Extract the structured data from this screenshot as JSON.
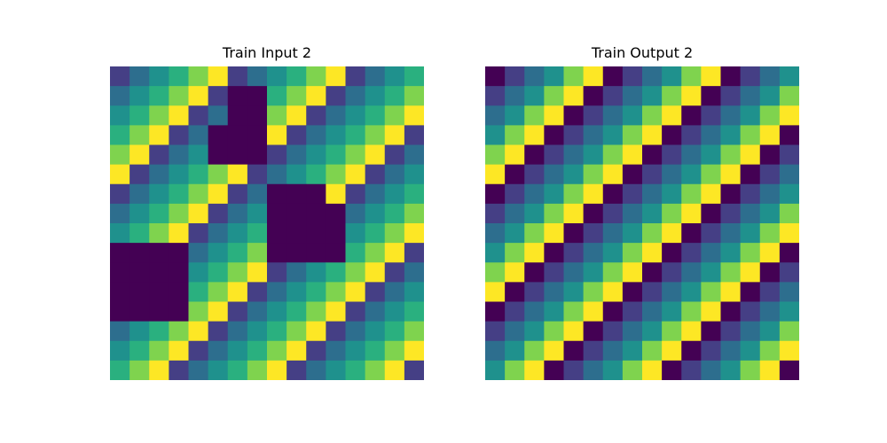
{
  "palette": {
    "0": "#440154",
    "1": "#453f85",
    "2": "#2d6e8e",
    "3": "#1f918d",
    "4": "#2ab07f",
    "5": "#7fd34e",
    "6": "#fde725"
  },
  "panels": [
    {
      "title": "Train Input 2",
      "grid": [
        [
          1,
          2,
          3,
          4,
          5,
          6,
          1,
          2,
          3,
          4,
          5,
          6,
          1,
          2,
          3,
          4
        ],
        [
          2,
          3,
          4,
          5,
          6,
          1,
          0,
          0,
          4,
          5,
          6,
          1,
          2,
          3,
          4,
          5
        ],
        [
          3,
          4,
          5,
          6,
          1,
          2,
          0,
          0,
          5,
          6,
          1,
          2,
          3,
          4,
          5,
          6
        ],
        [
          4,
          5,
          6,
          1,
          2,
          0,
          0,
          0,
          6,
          1,
          2,
          3,
          4,
          5,
          6,
          1
        ],
        [
          5,
          6,
          1,
          2,
          3,
          0,
          0,
          0,
          1,
          2,
          3,
          4,
          5,
          6,
          1,
          2
        ],
        [
          6,
          1,
          2,
          3,
          4,
          5,
          6,
          1,
          2,
          3,
          4,
          5,
          6,
          1,
          2,
          3
        ],
        [
          1,
          2,
          3,
          4,
          5,
          6,
          1,
          2,
          0,
          0,
          0,
          6,
          1,
          2,
          3,
          4
        ],
        [
          2,
          3,
          4,
          5,
          6,
          1,
          2,
          3,
          0,
          0,
          0,
          0,
          2,
          3,
          4,
          5
        ],
        [
          3,
          4,
          5,
          6,
          1,
          2,
          3,
          4,
          0,
          0,
          0,
          0,
          3,
          4,
          5,
          6
        ],
        [
          0,
          0,
          0,
          0,
          2,
          3,
          4,
          5,
          0,
          0,
          0,
          0,
          4,
          5,
          6,
          1
        ],
        [
          0,
          0,
          0,
          0,
          3,
          4,
          5,
          6,
          1,
          2,
          3,
          4,
          5,
          6,
          1,
          2
        ],
        [
          0,
          0,
          0,
          0,
          4,
          5,
          6,
          1,
          2,
          3,
          4,
          5,
          6,
          1,
          2,
          3
        ],
        [
          0,
          0,
          0,
          0,
          5,
          6,
          1,
          2,
          3,
          4,
          5,
          6,
          1,
          2,
          3,
          4
        ],
        [
          2,
          3,
          4,
          5,
          6,
          1,
          2,
          3,
          4,
          5,
          6,
          1,
          2,
          3,
          4,
          5
        ],
        [
          3,
          4,
          5,
          6,
          1,
          2,
          3,
          4,
          5,
          6,
          1,
          2,
          3,
          4,
          5,
          6
        ],
        [
          4,
          5,
          6,
          1,
          2,
          3,
          4,
          5,
          6,
          1,
          2,
          3,
          4,
          5,
          6,
          1
        ]
      ]
    },
    {
      "title": "Train Output 2",
      "grid": [
        [
          0,
          1,
          2,
          3,
          5,
          6,
          0,
          1,
          2,
          3,
          5,
          6,
          0,
          1,
          2,
          3
        ],
        [
          1,
          2,
          3,
          5,
          6,
          0,
          1,
          2,
          3,
          5,
          6,
          0,
          1,
          2,
          3,
          5
        ],
        [
          2,
          3,
          5,
          6,
          0,
          1,
          2,
          3,
          5,
          6,
          0,
          1,
          2,
          3,
          5,
          6
        ],
        [
          3,
          5,
          6,
          0,
          1,
          2,
          3,
          5,
          6,
          0,
          1,
          2,
          3,
          5,
          6,
          0
        ],
        [
          5,
          6,
          0,
          1,
          2,
          3,
          5,
          6,
          0,
          1,
          2,
          3,
          5,
          6,
          0,
          1
        ],
        [
          6,
          0,
          1,
          2,
          3,
          5,
          6,
          0,
          1,
          2,
          3,
          5,
          6,
          0,
          1,
          2
        ],
        [
          0,
          1,
          2,
          3,
          5,
          6,
          0,
          1,
          2,
          3,
          5,
          6,
          0,
          1,
          2,
          3
        ],
        [
          1,
          2,
          3,
          5,
          6,
          0,
          1,
          2,
          3,
          5,
          6,
          0,
          1,
          2,
          3,
          5
        ],
        [
          2,
          3,
          5,
          6,
          0,
          1,
          2,
          3,
          5,
          6,
          0,
          1,
          2,
          3,
          5,
          6
        ],
        [
          3,
          5,
          6,
          0,
          1,
          2,
          3,
          5,
          6,
          0,
          1,
          2,
          3,
          5,
          6,
          0
        ],
        [
          5,
          6,
          0,
          1,
          2,
          3,
          5,
          6,
          0,
          1,
          2,
          3,
          5,
          6,
          0,
          1
        ],
        [
          6,
          0,
          1,
          2,
          3,
          5,
          6,
          0,
          1,
          2,
          3,
          5,
          6,
          0,
          1,
          2
        ],
        [
          0,
          1,
          2,
          3,
          5,
          6,
          0,
          1,
          2,
          3,
          5,
          6,
          0,
          1,
          2,
          3
        ],
        [
          1,
          2,
          3,
          5,
          6,
          0,
          1,
          2,
          3,
          5,
          6,
          0,
          1,
          2,
          3,
          5
        ],
        [
          2,
          3,
          5,
          6,
          0,
          1,
          2,
          3,
          5,
          6,
          0,
          1,
          2,
          3,
          5,
          6
        ],
        [
          3,
          5,
          6,
          0,
          1,
          2,
          3,
          5,
          6,
          0,
          1,
          2,
          3,
          5,
          6,
          0
        ]
      ]
    }
  ]
}
